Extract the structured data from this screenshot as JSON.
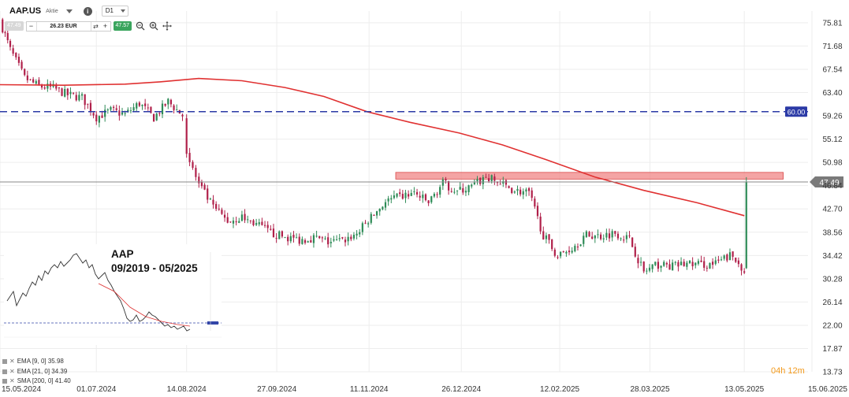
{
  "header": {
    "symbol": "AAP.US",
    "type": "Aktie",
    "info_icon": "i",
    "timeframe": "D1",
    "sell_price": "47.49",
    "buy_price": "47.57",
    "minus": "−",
    "plus": "+",
    "quantity": "26.23 EUR",
    "swap_icon": "⇄",
    "tools": [
      "sell-price-pill",
      "buy-price-pill",
      "zoom-out-icon",
      "zoom-in-icon",
      "crosshair-icon"
    ]
  },
  "inset": {
    "title_line1": "AAP",
    "title_line2": "09/2019 - 05/2025"
  },
  "legend": [
    {
      "text": "EMA [9, 0] 35.98"
    },
    {
      "text": "EMA [21, 0] 34.39"
    },
    {
      "text": "SMA [200, 0] 41.40"
    }
  ],
  "countdown": "04h 12m",
  "colors": {
    "up": "#2e8b57",
    "down": "#b0204a",
    "sma": "#e03131",
    "hline": "#2b3aa6",
    "zone": "#f08585",
    "price_line": "#888888",
    "price_tag": "#7a7a7a",
    "hline_tag": "#2b3aa6"
  },
  "chart_data": {
    "type": "line",
    "title": "",
    "ylim": [
      13.73,
      77.9
    ],
    "xlim": [
      "2024-05-15",
      "2025-06-15"
    ],
    "y_ticks": [
      "75.81",
      "71.68",
      "67.54",
      "63.40",
      "59.26",
      "55.12",
      "50.98",
      "46.84",
      "42.70",
      "38.56",
      "34.42",
      "30.28",
      "26.14",
      "22.00",
      "17.87",
      "13.73"
    ],
    "x_ticks": [
      {
        "label": "15.05.2024",
        "date": "2024-05-15"
      },
      {
        "label": "01.07.2024",
        "date": "2024-07-01"
      },
      {
        "label": "14.08.2024",
        "date": "2024-08-14"
      },
      {
        "label": "27.09.2024",
        "date": "2024-09-27"
      },
      {
        "label": "11.11.2024",
        "date": "2024-11-11"
      },
      {
        "label": "26.12.2024",
        "date": "2024-12-26"
      },
      {
        "label": "12.02.2025",
        "date": "2025-02-12"
      },
      {
        "label": "28.03.2025",
        "date": "2025-03-28"
      },
      {
        "label": "13.05.2025",
        "date": "2025-05-13"
      },
      {
        "label": "15.06.2025",
        "date": "2025-06-15"
      }
    ],
    "current_price": "47.49",
    "horizontal_line": {
      "value": 60.0,
      "label": "60.00",
      "style": "dashed"
    },
    "resistance_zone": {
      "from": 48.0,
      "to": 49.2,
      "start": "2024-11-24",
      "end": "2025-06-01"
    },
    "series": [
      {
        "name": "SMA [200, 0] 41.40",
        "x": [
          "2024-05-15",
          "2024-06-15",
          "2024-07-15",
          "2024-08-01",
          "2024-08-20",
          "2024-09-10",
          "2024-10-01",
          "2024-10-20",
          "2024-11-10",
          "2024-12-01",
          "2024-12-25",
          "2025-01-15",
          "2025-02-05",
          "2025-03-01",
          "2025-03-25",
          "2025-04-20",
          "2025-05-13"
        ],
        "values": [
          64.8,
          64.7,
          64.9,
          65.3,
          65.9,
          65.5,
          64.3,
          62.7,
          60.0,
          58.1,
          56.2,
          54.1,
          51.5,
          48.4,
          46.0,
          43.8,
          41.5
        ]
      },
      {
        "name": "price",
        "x": [
          "2024-05-15",
          "2024-05-20",
          "2024-05-27",
          "2024-06-03",
          "2024-06-10",
          "2024-06-17",
          "2024-06-24",
          "2024-07-01",
          "2024-07-08",
          "2024-07-15",
          "2024-07-22",
          "2024-07-29",
          "2024-08-05",
          "2024-08-12",
          "2024-08-14",
          "2024-08-20",
          "2024-08-27",
          "2024-09-03",
          "2024-09-10",
          "2024-09-17",
          "2024-09-24",
          "2024-10-01",
          "2024-10-08",
          "2024-10-15",
          "2024-10-22",
          "2024-10-29",
          "2024-11-05",
          "2024-11-12",
          "2024-11-19",
          "2024-11-26",
          "2024-12-03",
          "2024-12-10",
          "2024-12-17",
          "2024-12-24",
          "2024-12-31",
          "2025-01-07",
          "2025-01-14",
          "2025-01-21",
          "2025-01-28",
          "2025-02-04",
          "2025-02-11",
          "2025-02-18",
          "2025-02-25",
          "2025-03-04",
          "2025-03-11",
          "2025-03-18",
          "2025-03-25",
          "2025-04-01",
          "2025-04-08",
          "2025-04-15",
          "2025-04-22",
          "2025-04-29",
          "2025-05-06",
          "2025-05-13",
          "2025-05-14"
        ],
        "values": [
          76.2,
          71.0,
          66.0,
          64.5,
          64.2,
          63.0,
          62.5,
          59.0,
          60.2,
          59.5,
          61.5,
          58.9,
          61.8,
          59.3,
          52.5,
          47.0,
          43.0,
          40.5,
          41.2,
          40.0,
          38.4,
          37.7,
          37.2,
          37.6,
          36.8,
          37.0,
          38.3,
          41.2,
          44.0,
          44.8,
          45.5,
          43.8,
          47.3,
          45.8,
          46.6,
          48.4,
          47.2,
          46.0,
          45.5,
          38.0,
          34.3,
          35.8,
          38.0,
          37.9,
          38.5,
          37.3,
          31.5,
          32.8,
          32.5,
          33.0,
          32.8,
          32.9,
          34.4,
          32.0,
          47.5
        ]
      }
    ]
  }
}
